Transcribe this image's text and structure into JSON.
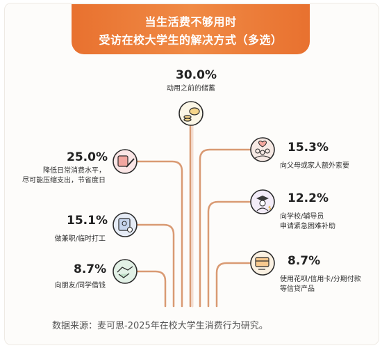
{
  "header": {
    "line1": "当生活费不够用时",
    "line2": "受访在校大学生的解决方式（多选）"
  },
  "colors": {
    "accent": "#e8712f",
    "stem": "#e2a57e",
    "stem_light": "#f3d4c0"
  },
  "chart_data": {
    "type": "bar",
    "categories": [
      "动用之前的储蓄",
      "降低日常消费水平，尽可能压缩支出，节省度日",
      "向父母或家人额外索要",
      "向学校/辅导员申请紧急困难补助",
      "做兼职/临时打工",
      "向朋友/同学借钱",
      "使用花呗/信用卡/分期付款等信贷产品"
    ],
    "values": [
      30.0,
      25.0,
      15.3,
      12.2,
      15.1,
      8.7,
      8.7
    ],
    "value_labels": [
      "30.0%",
      "25.0%",
      "15.3%",
      "12.2%",
      "15.1%",
      "8.7%",
      "8.7%"
    ],
    "title": "当生活费不够用时受访在校大学生的解决方式（多选）",
    "unit": "%"
  },
  "items": {
    "savings": {
      "pct": "30.0%",
      "label": "动用之前的储蓄",
      "icon": "piggy-bank-icon"
    },
    "reduce": {
      "pct": "25.0%",
      "label1": "降低日常消费水平，",
      "label2": "尽可能压缩支出，节省度日",
      "icon": "notebook-pen-icon"
    },
    "parttime": {
      "pct": "15.1%",
      "label": "做兼职/临时打工",
      "icon": "id-badge-icon"
    },
    "friends": {
      "pct": "8.7%",
      "label": "向朋友/同学借钱",
      "icon": "handshake-icon"
    },
    "parents": {
      "pct": "15.3%",
      "label": "向父母或家人额外索要",
      "icon": "family-heart-icon"
    },
    "school": {
      "pct": "12.2%",
      "label1": "向学校/辅导员",
      "label2": "申请紧急困难补助",
      "icon": "graduate-icon"
    },
    "credit": {
      "pct": "8.7%",
      "label1": "使用花呗/信用卡/分期付款",
      "label2": "等信贷产品",
      "icon": "credit-card-icon"
    }
  },
  "footer": {
    "source": "数据来源：麦可思-2025年在校大学生消费行为研究。"
  }
}
